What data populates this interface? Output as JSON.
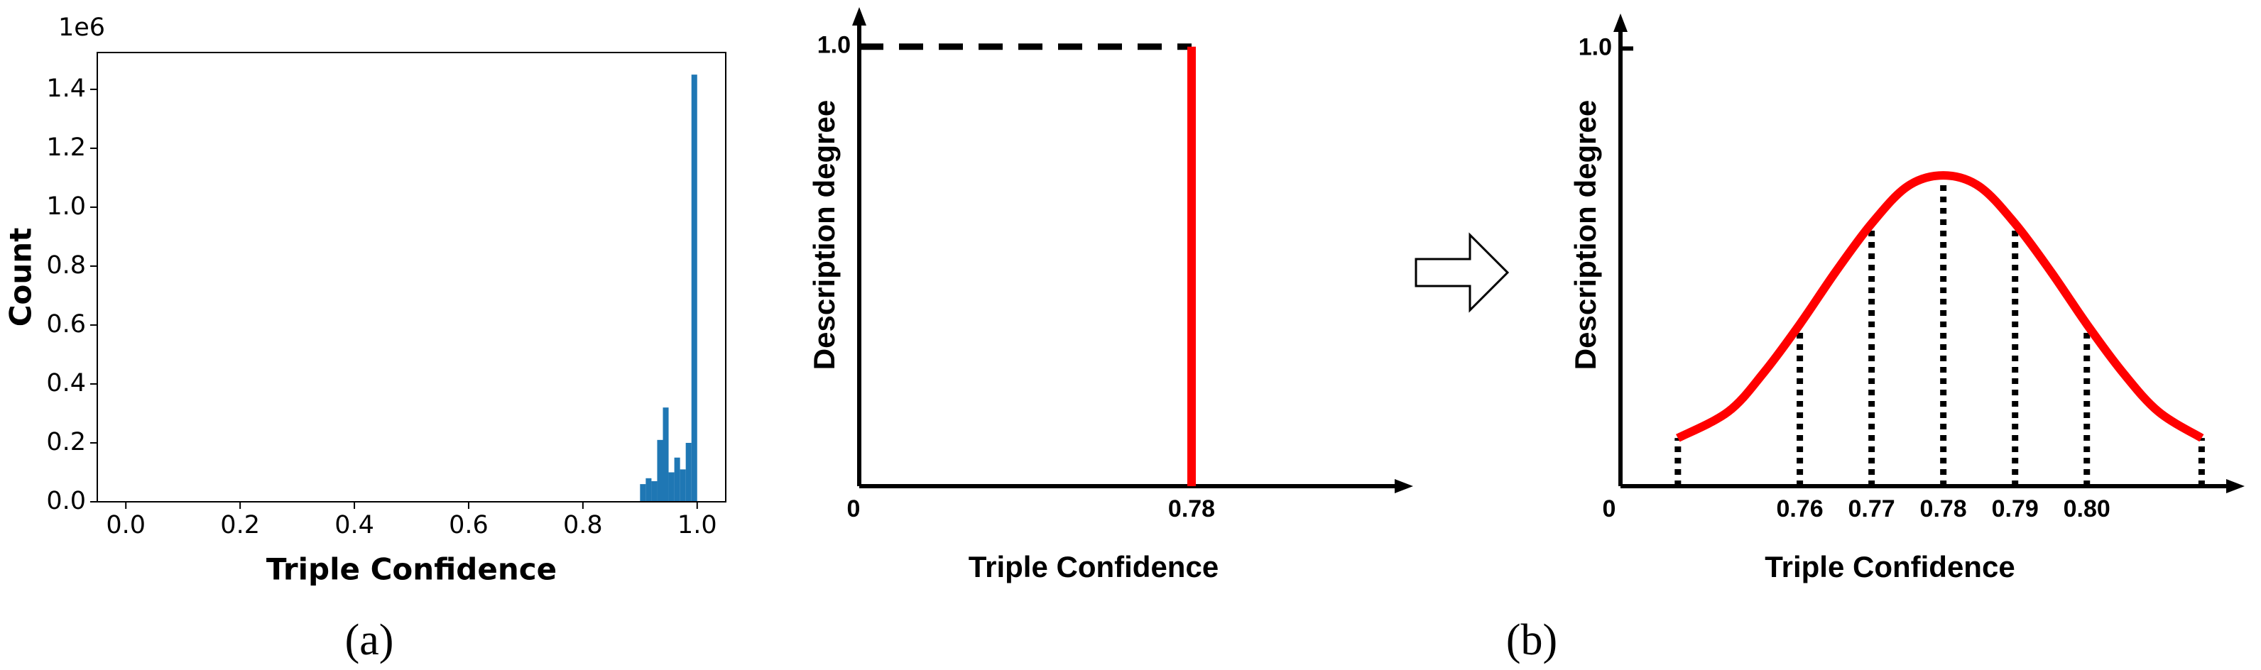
{
  "captions": [
    "(a)",
    "(b)"
  ],
  "chart_data": [
    {
      "type": "histogram",
      "bins": [
        0.9,
        0.91,
        0.92,
        0.93,
        0.94,
        0.95,
        0.96,
        0.97,
        0.98,
        0.99,
        1.0
      ],
      "counts": [
        60000,
        80000,
        70000,
        210000,
        320000,
        100000,
        150000,
        110000,
        200000,
        1450000
      ],
      "color": "#1f77b4",
      "xlim": [
        -0.05,
        1.05
      ],
      "ylim": [
        0,
        1525000
      ],
      "xticks": [
        {
          "value": 0,
          "label": "0.0"
        },
        0.2,
        0.4,
        0.6,
        0.8,
        {
          "value": 1,
          "label": "1.0"
        }
      ],
      "yticks": [
        {
          "value": 0,
          "label": "0.0"
        },
        {
          "value": 200000,
          "label": "0.2"
        },
        {
          "value": 400000,
          "label": "0.4"
        },
        {
          "value": 600000,
          "label": "0.6"
        },
        {
          "value": 800000,
          "label": "0.8"
        },
        {
          "value": 1000000,
          "label": "1.0"
        },
        {
          "value": 1200000,
          "label": "1.2"
        },
        {
          "value": 1400000,
          "label": "1.4"
        }
      ],
      "y_offset_label": "1e6",
      "xlabel": "Triple Confidence",
      "ylabel": "Count",
      "frame": true
    },
    {
      "type": "line",
      "xlim": [
        0,
        1.3
      ],
      "ylim": [
        0,
        1.09
      ],
      "xticks": [
        0,
        0.78
      ],
      "yticks": [
        {
          "value": 1,
          "label": "1.0"
        }
      ],
      "xlabel": "Triple Confidence",
      "ylabel": "Description degree",
      "axis_arrows": true,
      "series": [
        {
          "color": "#000000",
          "dash": "dashed",
          "x": [
            0,
            0.78
          ],
          "values": [
            1,
            1
          ]
        },
        {
          "color": "#ff0000",
          "x": [
            0.78,
            0.78
          ],
          "values": [
            0,
            1
          ]
        }
      ]
    },
    {
      "type": "line",
      "xlim": [
        0.735,
        0.822
      ],
      "ylim": [
        0,
        1.08
      ],
      "xticks": [
        0.76,
        0.77,
        0.78,
        0.79,
        {
          "value": 0.8,
          "label": "0.80"
        }
      ],
      "yticks": [
        {
          "value": 1,
          "label": "1.0"
        }
      ],
      "origin_label": "0",
      "xlabel": "Triple Confidence",
      "ylabel": "Description degree",
      "axis_arrows": true,
      "smooth": true,
      "series": [
        {
          "color": "#ff0000",
          "x": [
            0.743,
            0.75,
            0.755,
            0.76,
            0.765,
            0.77,
            0.775,
            0.78,
            0.785,
            0.79,
            0.795,
            0.8,
            0.805,
            0.81,
            0.816
          ],
          "values": [
            0.11,
            0.17,
            0.26,
            0.37,
            0.49,
            0.6,
            0.685,
            0.71,
            0.685,
            0.6,
            0.49,
            0.37,
            0.26,
            0.17,
            0.11
          ]
        }
      ],
      "stems": {
        "color": "#000000",
        "dash": "dotted",
        "x": [
          0.743,
          0.76,
          0.77,
          0.78,
          0.79,
          0.8,
          0.816
        ],
        "values": [
          0.11,
          0.37,
          0.6,
          0.71,
          0.6,
          0.37,
          0.11
        ]
      }
    }
  ]
}
